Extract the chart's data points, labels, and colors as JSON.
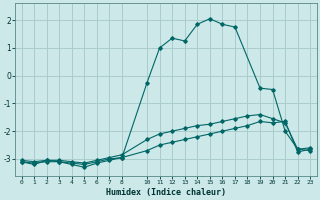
{
  "xlabel": "Humidex (Indice chaleur)",
  "bg_color": "#cce8e8",
  "grid_color": "#aacccc",
  "line_color": "#006666",
  "xlim": [
    -0.5,
    23.5
  ],
  "ylim": [
    -3.6,
    2.6
  ],
  "yticks": [
    -3,
    -2,
    -1,
    0,
    1,
    2
  ],
  "xticks": [
    0,
    1,
    2,
    3,
    4,
    5,
    6,
    7,
    8,
    10,
    11,
    12,
    13,
    14,
    15,
    16,
    17,
    18,
    19,
    20,
    21,
    22,
    23
  ],
  "series": [
    {
      "x": [
        0,
        1,
        2,
        3,
        4,
        5,
        6,
        7,
        8,
        10,
        11,
        12,
        13,
        14,
        15,
        16,
        17,
        19,
        20,
        21,
        22,
        23
      ],
      "y": [
        -3.1,
        -3.2,
        -3.05,
        -3.1,
        -3.2,
        -3.3,
        -3.15,
        -3.05,
        -2.95,
        -0.25,
        1.0,
        1.35,
        1.25,
        1.85,
        2.05,
        1.85,
        1.75,
        -0.45,
        -0.5,
        -2.0,
        -2.65,
        -2.7
      ]
    },
    {
      "x": [
        0,
        1,
        2,
        3,
        4,
        5,
        6,
        7,
        8,
        10,
        11,
        12,
        13,
        14,
        15,
        16,
        17,
        18,
        19,
        20,
        21,
        22,
        23
      ],
      "y": [
        -3.1,
        -3.15,
        -3.1,
        -3.1,
        -3.15,
        -3.2,
        -3.1,
        -3.0,
        -2.95,
        -2.7,
        -2.5,
        -2.4,
        -2.3,
        -2.2,
        -2.1,
        -2.0,
        -1.9,
        -1.8,
        -1.65,
        -1.7,
        -1.65,
        -2.75,
        -2.65
      ]
    },
    {
      "x": [
        0,
        1,
        2,
        3,
        4,
        5,
        6,
        7,
        8,
        10,
        11,
        12,
        13,
        14,
        15,
        16,
        17,
        18,
        19,
        20,
        21,
        22,
        23
      ],
      "y": [
        -3.05,
        -3.1,
        -3.05,
        -3.05,
        -3.1,
        -3.15,
        -3.05,
        -2.95,
        -2.85,
        -2.3,
        -2.1,
        -2.0,
        -1.9,
        -1.8,
        -1.75,
        -1.65,
        -1.55,
        -1.45,
        -1.4,
        -1.55,
        -1.7,
        -2.65,
        -2.6
      ]
    }
  ]
}
